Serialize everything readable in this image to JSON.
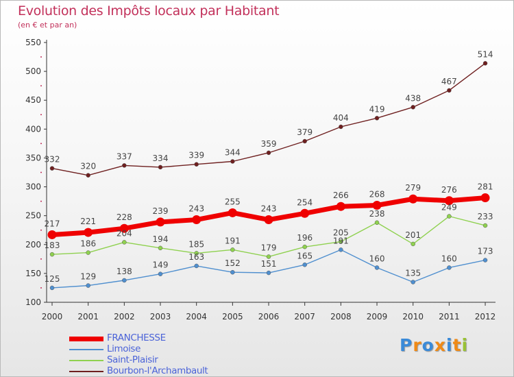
{
  "header": {
    "title": "Evolution des Impôts locaux par Habitant",
    "subtitle": "(en € et par an)"
  },
  "logo": {
    "letters": [
      "P",
      "r",
      "o",
      "x",
      "i",
      "t",
      "i"
    ],
    "colors": [
      "#3a8ad8",
      "#f08a16",
      "#3a8ad8",
      "#f08a16",
      "#3a8ad8",
      "#f08a16",
      "#9ac236"
    ]
  },
  "colors": {
    "title": "#c2305a",
    "legend_text": "#4b63d8",
    "axis": "#333333",
    "axis_tick_marks": "#c2305a"
  },
  "chart_data": {
    "type": "line",
    "title": "Evolution des Impôts locaux par Habitant",
    "subtitle": "(en € et par an)",
    "xlabel": "",
    "ylabel": "",
    "x": [
      "2000",
      "2001",
      "2002",
      "2003",
      "2004",
      "2005",
      "2006",
      "2007",
      "2008",
      "2009",
      "2010",
      "2011",
      "2012"
    ],
    "ylim": [
      100,
      550
    ],
    "yticks": [
      100,
      150,
      200,
      250,
      300,
      350,
      400,
      450,
      500,
      550
    ],
    "grid": false,
    "legend_position": "bottom-left",
    "series": [
      {
        "name": "FRANCHESSE",
        "color": "#ef0000",
        "emphasis": true,
        "values": [
          217,
          221,
          228,
          239,
          243,
          255,
          243,
          254,
          266,
          268,
          279,
          276,
          281
        ]
      },
      {
        "name": "Limoise",
        "color": "#4f8fcf",
        "values": [
          125,
          129,
          138,
          149,
          163,
          152,
          151,
          165,
          191,
          160,
          135,
          160,
          173
        ]
      },
      {
        "name": "Saint-Plaisir",
        "color": "#8fd14f",
        "values": [
          183,
          186,
          204,
          194,
          185,
          191,
          179,
          196,
          205,
          238,
          201,
          249,
          233
        ]
      },
      {
        "name": "Bourbon-l'Archambault",
        "color": "#6e1f1f",
        "values": [
          332,
          320,
          337,
          334,
          339,
          344,
          359,
          379,
          404,
          419,
          438,
          467,
          514
        ]
      }
    ]
  }
}
